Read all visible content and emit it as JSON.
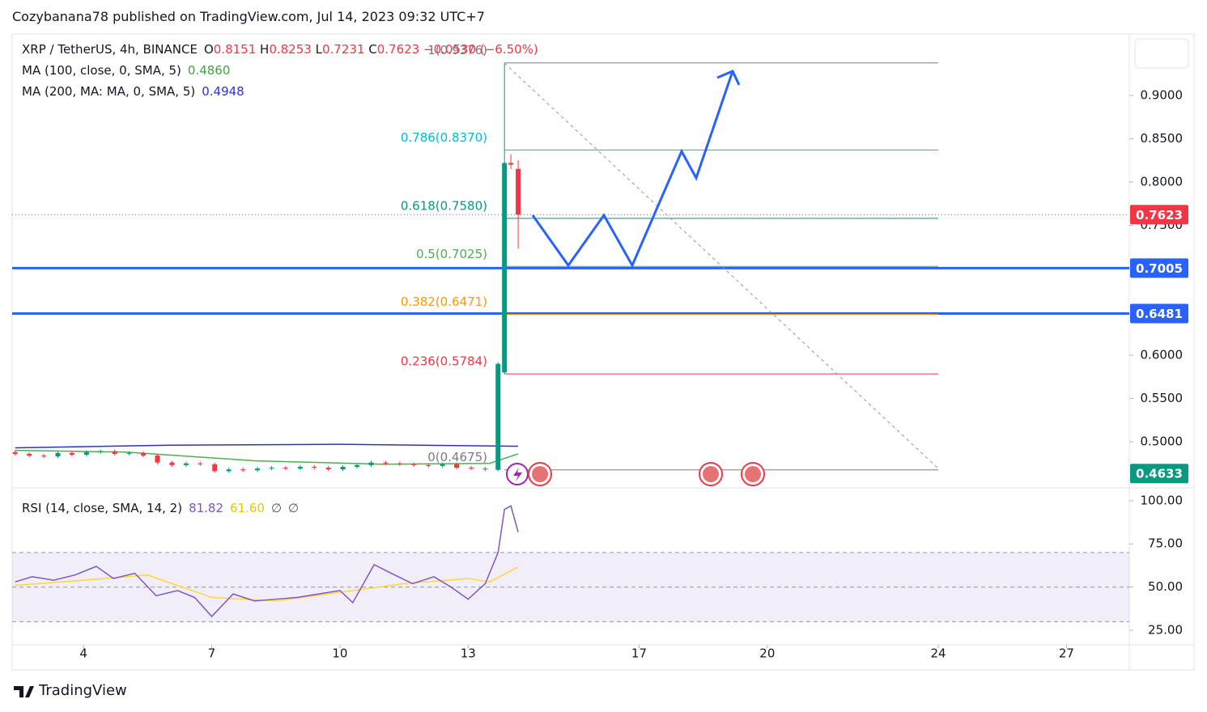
{
  "title": "Cozybanana78 published on TradingView.com, Jul 14, 2023 09:32 UTC+7",
  "footer": "TradingView",
  "header": {
    "symbol": "XRP / TetherUS, 4h, BINANCE",
    "o_label": "O",
    "open": "0.8151",
    "h_label": "H",
    "high": "0.8253",
    "l_label": "L",
    "low": "0.7231",
    "c_label": "C",
    "close": "0.7623",
    "change": "−0.0530 (−6.50%)",
    "color": "#f23645"
  },
  "indicators": [
    {
      "name": "MA (100, close, 0, SMA, 5)",
      "value": "0.4860",
      "color": "#43a047"
    },
    {
      "name": "MA (200, MA: MA, 0, SMA, 5)",
      "value": "0.4948",
      "color": "#2f2fd8"
    }
  ],
  "rsi_legend": {
    "name": "RSI (14, close, SMA, 14, 2)",
    "values": [
      "81.82",
      "61.60",
      "∅",
      "∅"
    ],
    "colors": [
      "#7e57c2",
      "#e8c800",
      "#555",
      "#555"
    ]
  },
  "chart_data": {
    "type": "candlestick",
    "x": [
      2.4,
      2.73,
      3.07,
      3.4,
      3.73,
      4.07,
      4.4,
      4.73,
      5.07,
      5.4,
      5.73,
      6.07,
      6.4,
      6.73,
      7.07,
      7.4,
      7.73,
      8.07,
      8.4,
      8.73,
      9.07,
      9.4,
      9.73,
      10.07,
      10.4,
      10.73,
      11.07,
      11.4,
      11.73,
      12.07,
      12.4,
      12.73,
      13.07,
      13.4,
      13.7,
      13.85,
      14.0,
      14.17
    ],
    "open": [
      0.488,
      0.486,
      0.484,
      0.483,
      0.487,
      0.485,
      0.488,
      0.489,
      0.486,
      0.487,
      0.484,
      0.476,
      0.473,
      0.475,
      0.474,
      0.466,
      0.468,
      0.467,
      0.469,
      0.47,
      0.469,
      0.471,
      0.47,
      0.468,
      0.471,
      0.473,
      0.476,
      0.475,
      0.474,
      0.473,
      0.472,
      0.474,
      0.47,
      0.469,
      0.4675,
      0.58,
      0.822,
      0.8151
    ],
    "high": [
      0.49,
      0.488,
      0.486,
      0.489,
      0.489,
      0.49,
      0.491,
      0.491,
      0.489,
      0.489,
      0.486,
      0.478,
      0.477,
      0.477,
      0.476,
      0.47,
      0.47,
      0.471,
      0.472,
      0.472,
      0.473,
      0.473,
      0.472,
      0.473,
      0.475,
      0.478,
      0.478,
      0.477,
      0.476,
      0.475,
      0.476,
      0.476,
      0.472,
      0.471,
      0.592,
      0.9376,
      0.832,
      0.8253
    ],
    "low": [
      0.484,
      0.482,
      0.481,
      0.481,
      0.483,
      0.483,
      0.486,
      0.484,
      0.484,
      0.482,
      0.474,
      0.471,
      0.471,
      0.472,
      0.464,
      0.464,
      0.465,
      0.465,
      0.467,
      0.467,
      0.467,
      0.468,
      0.466,
      0.466,
      0.469,
      0.471,
      0.473,
      0.472,
      0.471,
      0.47,
      0.47,
      0.468,
      0.467,
      0.466,
      0.466,
      0.578,
      0.815,
      0.7231
    ],
    "close": [
      0.486,
      0.484,
      0.483,
      0.487,
      0.485,
      0.488,
      0.489,
      0.486,
      0.487,
      0.484,
      0.476,
      0.473,
      0.475,
      0.474,
      0.466,
      0.468,
      0.467,
      0.469,
      0.47,
      0.469,
      0.471,
      0.47,
      0.468,
      0.471,
      0.473,
      0.476,
      0.475,
      0.474,
      0.473,
      0.472,
      0.474,
      0.47,
      0.469,
      0.468,
      0.59,
      0.822,
      0.82,
      0.7623
    ],
    "up_color": "#089981",
    "down_color": "#f23645",
    "xlim": [
      2.33,
      28.47
    ],
    "xticks": [
      4,
      7,
      10,
      13,
      17,
      20,
      24,
      27
    ],
    "ylim": [
      0.4495,
      0.971
    ],
    "yticks": [
      {
        "value": 0.9,
        "label": "0.9000"
      },
      {
        "value": 0.85,
        "label": "0.8500"
      },
      {
        "value": 0.8,
        "label": "0.8000"
      },
      {
        "value": 0.75,
        "label": "0.7500"
      },
      {
        "value": 0.6,
        "label": "0.6000"
      },
      {
        "value": 0.55,
        "label": "0.5500"
      },
      {
        "value": 0.5,
        "label": "0.5000"
      }
    ],
    "ma_lines": [
      {
        "color": "#4caf50",
        "x": [
          2.4,
          5,
          8,
          11,
          13.5,
          14.17
        ],
        "values": [
          0.49,
          0.488,
          0.478,
          0.474,
          0.475,
          0.486
        ]
      },
      {
        "color": "#2f2fd8",
        "x": [
          2.4,
          6,
          10,
          14.17
        ],
        "values": [
          0.493,
          0.496,
          0.497,
          0.4948
        ]
      }
    ],
    "fib_start": 13.85,
    "fib_end": 24,
    "fib_levels": [
      {
        "label": "1(0.9376)",
        "price": 0.9376,
        "color": "#787b86"
      },
      {
        "label": "0.786(0.8370)",
        "price": 0.837,
        "color": "#00bcd4"
      },
      {
        "label": "0.618(0.7580)",
        "price": 0.758,
        "color": "#089981"
      },
      {
        "label": "0.5(0.7025)",
        "price": 0.7025,
        "color": "#4caf50"
      },
      {
        "label": "0.382(0.6471)",
        "price": 0.6471,
        "color": "#ff9800"
      },
      {
        "label": "0.236(0.5784)",
        "price": 0.5784,
        "color": "#f23645"
      },
      {
        "label": "0(0.4675)",
        "price": 0.4675,
        "color": "#787b86"
      }
    ],
    "h_lines": [
      {
        "price": 0.7005,
        "color": "#2962ff"
      },
      {
        "price": 0.6481,
        "color": "#2962ff"
      }
    ],
    "price_labels": [
      {
        "value": 0.7623,
        "color": "#f23645"
      },
      {
        "value": 0.7005,
        "color": "#2962ff"
      },
      {
        "value": 0.6481,
        "color": "#2962ff"
      },
      {
        "value": 0.4633,
        "color": "#089981"
      }
    ],
    "rsi": {
      "x": [
        2.4,
        2.8,
        3.3,
        3.8,
        4.3,
        4.7,
        5.2,
        5.7,
        6.2,
        6.6,
        7,
        7.5,
        8,
        8.5,
        9,
        9.5,
        10,
        10.3,
        10.8,
        11.2,
        11.7,
        12.2,
        12.6,
        13,
        13.4,
        13.7,
        13.85,
        14.0,
        14.17
      ],
      "values": [
        53,
        56,
        54,
        57,
        62,
        55,
        58,
        45,
        48,
        44,
        33,
        46,
        42,
        43,
        44,
        46,
        48,
        41,
        63,
        58,
        52,
        56,
        50,
        43,
        52,
        70,
        95,
        97,
        81.82
      ],
      "color": "#7e57c2",
      "signal_x": [
        2.4,
        4,
        5.5,
        7,
        8.5,
        10,
        11.5,
        13,
        13.5,
        14.17
      ],
      "signal": [
        51,
        54,
        57,
        44,
        42,
        47,
        52,
        55,
        53,
        61.6
      ],
      "signal_color": "#fdd835",
      "ylim": [
        17.5,
        106.5
      ],
      "yticks": [
        {
          "value": 100,
          "label": "100.00"
        },
        {
          "value": 75,
          "label": "75.00"
        },
        {
          "value": 50,
          "label": "50.00"
        },
        {
          "value": 25,
          "label": "25.00"
        }
      ],
      "band": [
        30,
        70
      ],
      "mid": 50
    }
  }
}
